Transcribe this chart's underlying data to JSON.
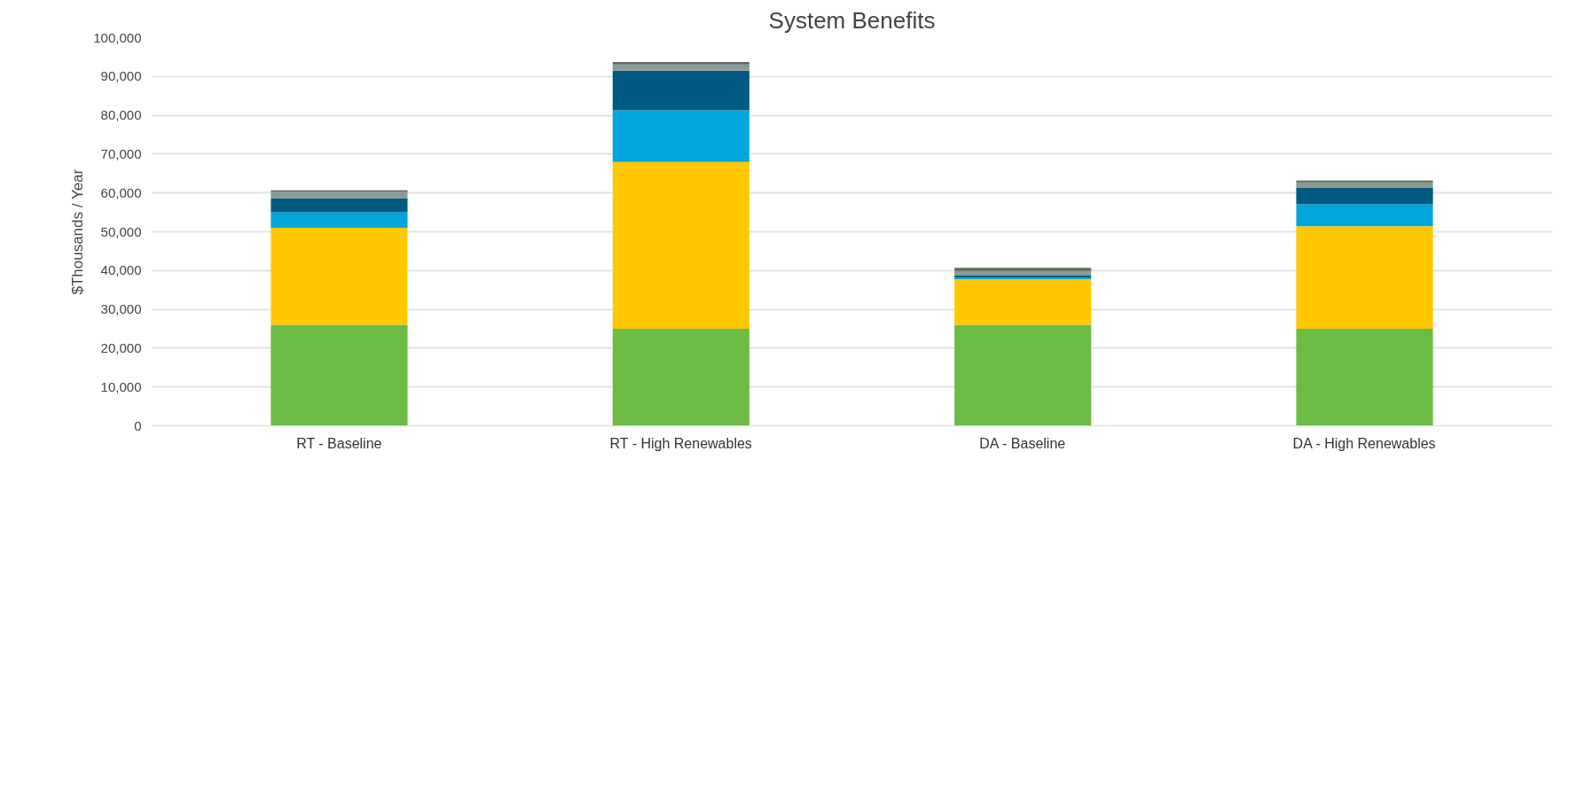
{
  "chart_data": {
    "type": "bar",
    "title": "System Benefits",
    "ylabel": "$Thousands / Year",
    "stacked": true,
    "categories": [
      "RT - Baseline",
      "RT - High Renewables",
      "DA - Baseline",
      "DA - High Renewables"
    ],
    "series": [
      {
        "color": "#6cbb44",
        "values": [
          26000,
          25000,
          26000,
          25000
        ]
      },
      {
        "color": "#ffc800",
        "values": [
          25000,
          43000,
          11800,
          26400
        ]
      },
      {
        "color": "#00a6dc",
        "values": [
          4000,
          13300,
          400,
          5700
        ]
      },
      {
        "color": "#005a82",
        "values": [
          3600,
          10200,
          500,
          4300
        ]
      },
      {
        "color": "#8c9a96",
        "values": [
          1700,
          1600,
          1200,
          1300
        ]
      },
      {
        "color": "#5a6a5a",
        "values": [
          400,
          600,
          800,
          500
        ]
      }
    ],
    "ylim": [
      0,
      100000
    ],
    "yticks": [
      0,
      {
        "value": 10000,
        "label": "10,000"
      },
      {
        "value": 20000,
        "label": "20,000"
      },
      {
        "value": 30000,
        "label": "30,000"
      },
      {
        "value": 40000,
        "label": "40,000"
      },
      {
        "value": 50000,
        "label": "50,000"
      },
      {
        "value": 60000,
        "label": "60,000"
      },
      {
        "value": 70000,
        "label": "70,000"
      },
      {
        "value": 80000,
        "label": "80,000"
      },
      {
        "value": 90000,
        "label": "90,000"
      },
      {
        "value": 100000,
        "label": "100,000"
      }
    ],
    "grid": "y"
  }
}
